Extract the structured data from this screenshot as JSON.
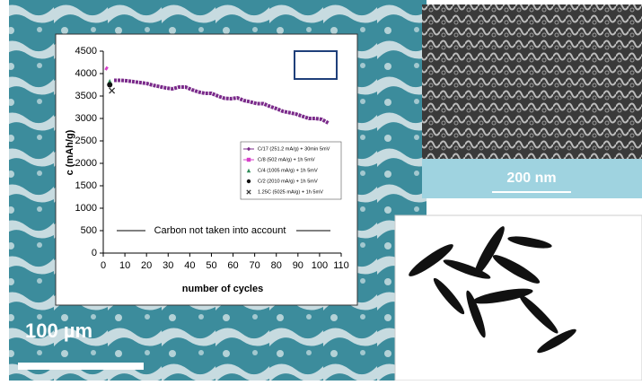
{
  "chart_data": {
    "type": "line",
    "y_label": "c (mAh/g)",
    "x_label": "number of cycles",
    "annotation": "Carbon not taken into account",
    "xlim": [
      0,
      110
    ],
    "xticks": [
      0,
      10,
      20,
      30,
      40,
      50,
      60,
      70,
      80,
      90,
      100,
      110
    ],
    "ylim": [
      0,
      4500
    ],
    "yticks": [
      0,
      500,
      1000,
      1500,
      2000,
      2500,
      3000,
      3500,
      4000,
      4500
    ],
    "legend": "right",
    "series": [
      {
        "name": "C/17 (251.2 mA/g) + 30min 5mV",
        "color": "#7a2a8a",
        "marker": "diamond",
        "x": [
          5,
          8,
          11,
          14,
          17,
          20,
          23,
          26,
          29,
          32,
          35,
          38,
          41,
          44,
          47,
          50,
          53,
          56,
          59,
          62,
          65,
          68,
          71,
          74,
          77,
          80,
          83,
          86,
          89,
          92,
          95,
          98,
          101,
          104
        ],
        "values": [
          3850,
          3850,
          3840,
          3820,
          3800,
          3780,
          3740,
          3710,
          3680,
          3660,
          3700,
          3700,
          3640,
          3590,
          3560,
          3560,
          3500,
          3450,
          3440,
          3460,
          3400,
          3370,
          3330,
          3330,
          3270,
          3220,
          3160,
          3130,
          3100,
          3050,
          3000,
          3000,
          2980,
          2900
        ]
      },
      {
        "name": "C/8 (502 mA/g) + 1h 5mV",
        "color": "#d63fc8",
        "marker": "square",
        "x": [
          1,
          2
        ],
        "values": [
          4130,
          4100
        ]
      },
      {
        "name": "C/4 (1005 mA/g) + 1h 5mV",
        "color": "#2e8b57",
        "marker": "triangle",
        "x": [
          3
        ],
        "values": [
          3820
        ]
      },
      {
        "name": "C/2 (2010 mA/g) + 1h 5mV",
        "color": "#111111",
        "marker": "circle",
        "x": [
          3
        ],
        "values": [
          3750
        ]
      },
      {
        "name": "1.25C (5025 mA/g) + 1h 5mV",
        "color": "#333333",
        "marker": "x",
        "x": [
          4
        ],
        "values": [
          3620
        ]
      }
    ]
  },
  "image_labels": {
    "left_scale": "100 µm",
    "right_scale": "200 nm"
  }
}
